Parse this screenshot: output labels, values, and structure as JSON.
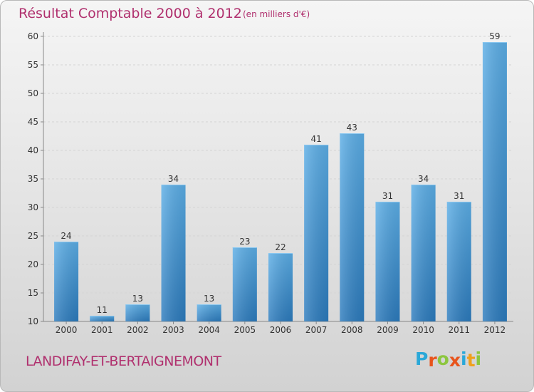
{
  "title": "Résultat Comptable 2000 à 2012",
  "subtitle": "(en milliers d'€)",
  "commune": "LANDIFAY-ET-BERTAIGNEMONT",
  "logo": {
    "letters": [
      "P",
      "r",
      "o",
      "x",
      "i",
      "t",
      "i"
    ],
    "colors": [
      "#2aa8d8",
      "#e8541c",
      "#8cc63e",
      "#e8541c",
      "#2aa8d8",
      "#f0a01c",
      "#8cc63e"
    ]
  },
  "colors": {
    "bar_top": "#5caee6",
    "bar_bottom": "#2c7bbd",
    "title": "#b0306e"
  },
  "chart_data": {
    "type": "bar",
    "title": "Résultat Comptable 2000 à 2012",
    "subtitle": "(en milliers d'€)",
    "xlabel": "",
    "ylabel": "",
    "categories": [
      "2000",
      "2001",
      "2002",
      "2003",
      "2004",
      "2005",
      "2006",
      "2007",
      "2008",
      "2009",
      "2010",
      "2011",
      "2012"
    ],
    "values": [
      24,
      11,
      13,
      34,
      13,
      23,
      22,
      41,
      43,
      31,
      34,
      31,
      59
    ],
    "ylim": [
      10,
      60
    ],
    "yticks": [
      10,
      15,
      20,
      25,
      30,
      35,
      40,
      45,
      50,
      55,
      60
    ],
    "grid": true
  }
}
